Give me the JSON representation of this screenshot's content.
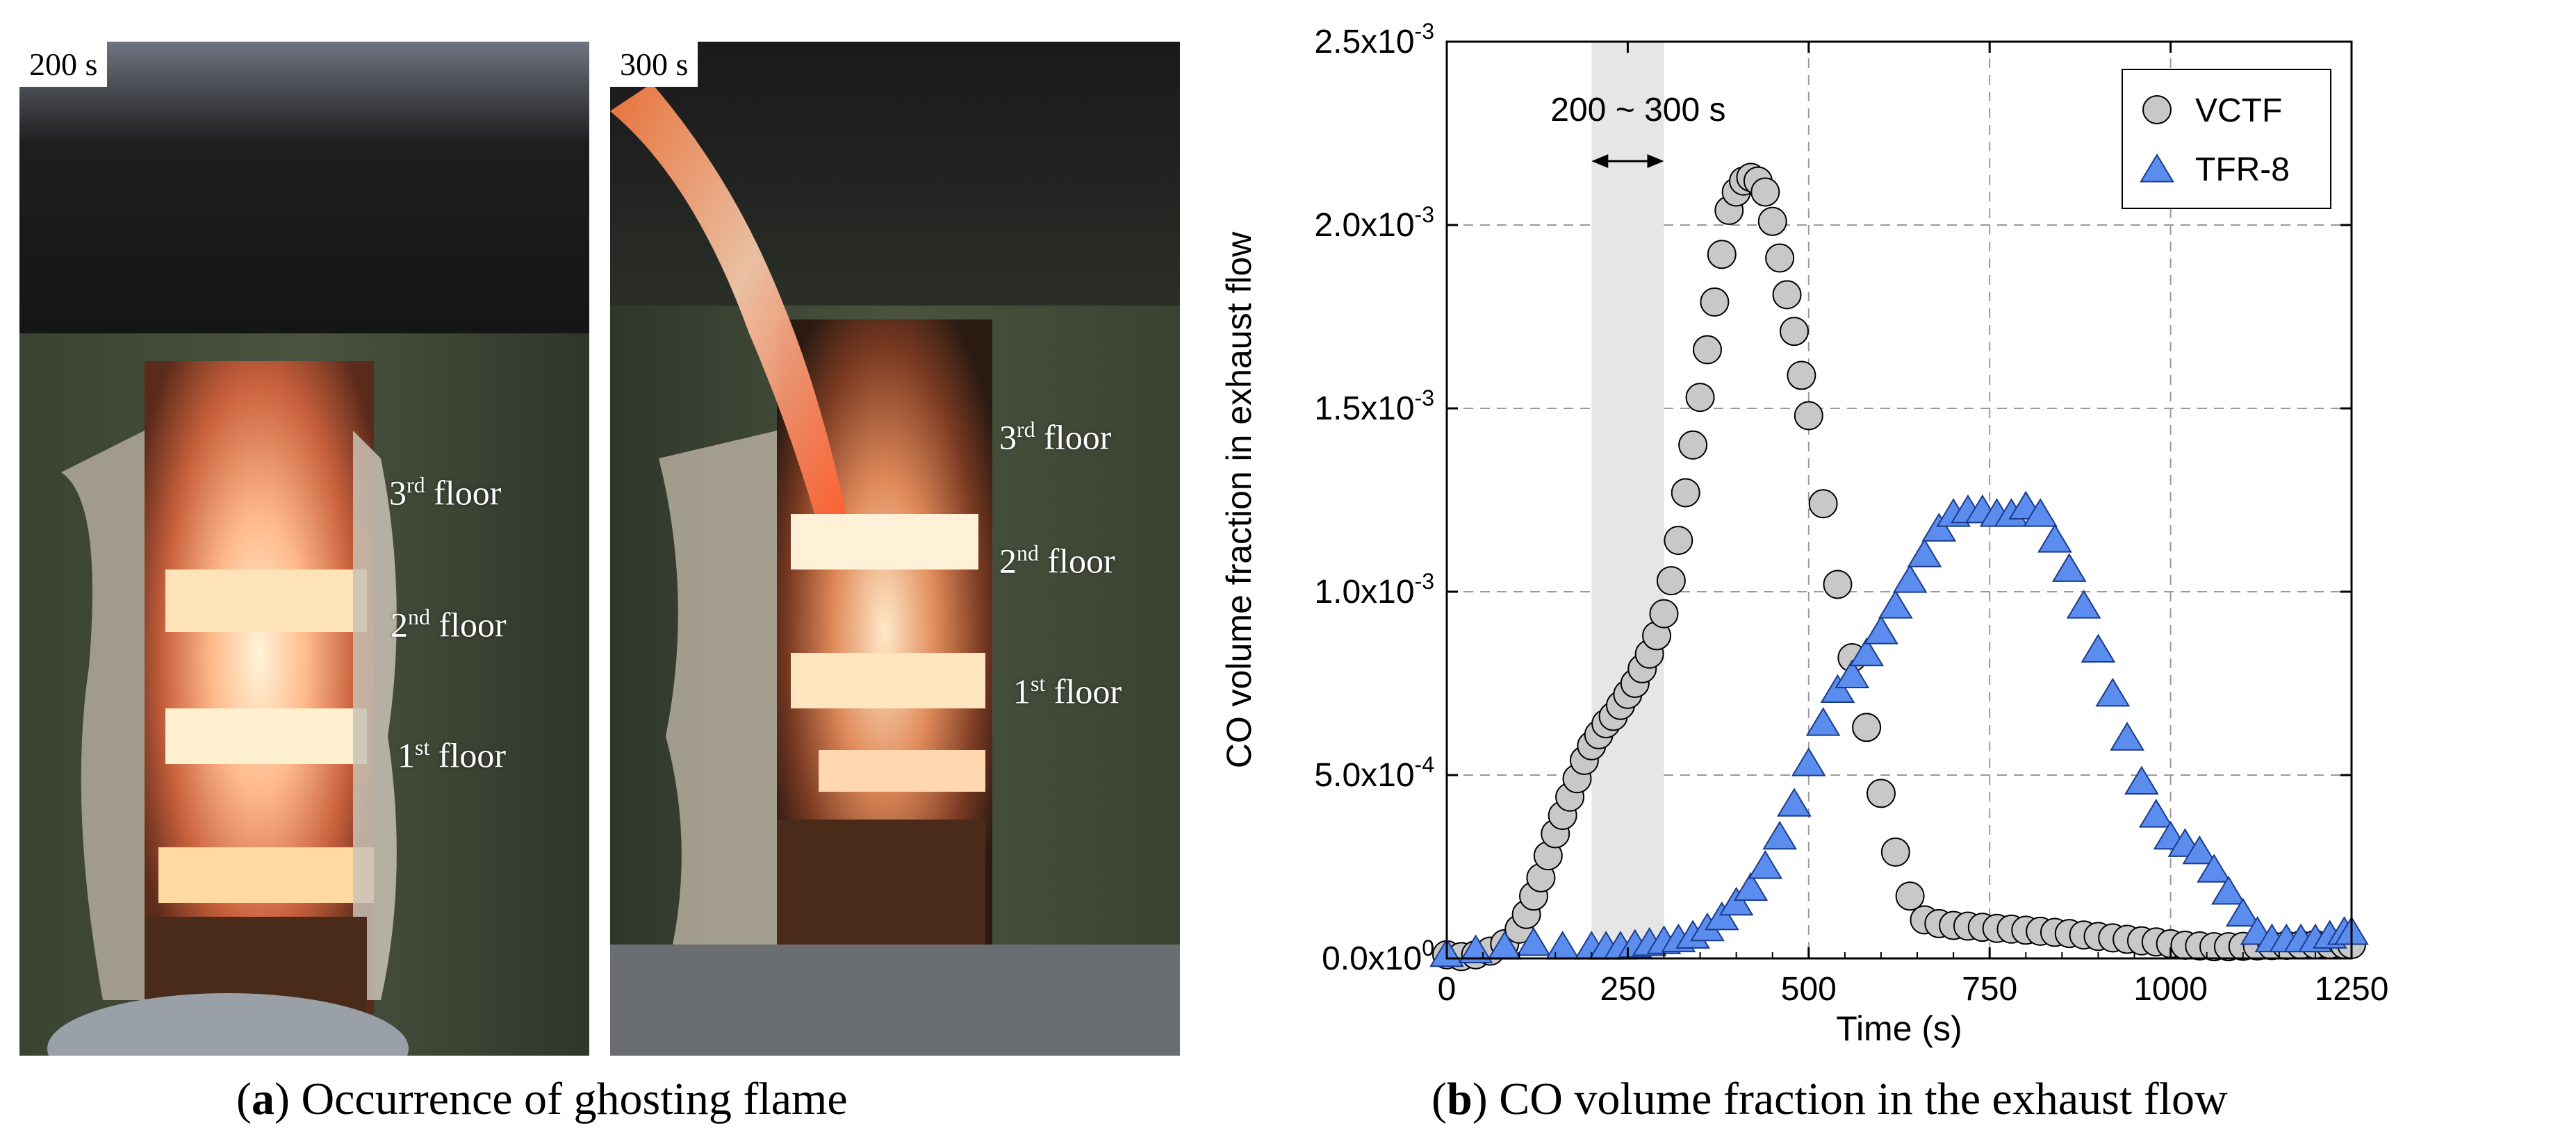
{
  "panel_a": {
    "photo_left": {
      "time": "200 s",
      "floors": [
        {
          "ord": "3",
          "sup": "rd",
          "word": "floor"
        },
        {
          "ord": "2",
          "sup": "nd",
          "word": "floor"
        },
        {
          "ord": "1",
          "sup": "st",
          "word": "floor"
        }
      ]
    },
    "photo_right": {
      "time": "300 s",
      "floors": [
        {
          "ord": "3",
          "sup": "rd",
          "word": "floor"
        },
        {
          "ord": "2",
          "sup": "nd",
          "word": "floor"
        },
        {
          "ord": "1",
          "sup": "st",
          "word": "floor"
        }
      ]
    },
    "caption_letter": "a",
    "caption_text": "Occurrence of ghosting flame"
  },
  "panel_b": {
    "caption_letter": "b",
    "caption_text": "CO volume fraction in the exhaust flow"
  },
  "chart_data": {
    "type": "scatter",
    "xlabel": "Time (s)",
    "ylabel": "CO volume fraction in exhaust flow",
    "xlim": [
      0,
      1250
    ],
    "ylim": [
      0,
      0.0025
    ],
    "xticks": [
      0,
      250,
      500,
      750,
      1000,
      1250
    ],
    "yticks": [
      {
        "value": 0,
        "mantissa": "0.0x10",
        "exp": "0"
      },
      {
        "value": 0.0005,
        "mantissa": "5.0x10",
        "exp": "-4"
      },
      {
        "value": 0.001,
        "mantissa": "1.0x10",
        "exp": "-3"
      },
      {
        "value": 0.0015,
        "mantissa": "1.5x10",
        "exp": "-3"
      },
      {
        "value": 0.002,
        "mantissa": "2.0x10",
        "exp": "-3"
      },
      {
        "value": 0.0025,
        "mantissa": "2.5x10",
        "exp": "-3"
      }
    ],
    "grid": true,
    "legend_position": "top-right",
    "shaded_region": {
      "x": [
        200,
        300
      ],
      "label": "200 ~ 300 s"
    },
    "series": [
      {
        "name": "VCTF",
        "marker": "circle",
        "color": "#c8c8c8",
        "x": [
          0,
          20,
          40,
          60,
          80,
          100,
          110,
          120,
          130,
          140,
          150,
          160,
          170,
          180,
          190,
          200,
          210,
          220,
          230,
          240,
          250,
          260,
          270,
          280,
          290,
          300,
          310,
          320,
          330,
          340,
          350,
          360,
          370,
          380,
          390,
          400,
          410,
          420,
          430,
          440,
          450,
          460,
          470,
          480,
          490,
          500,
          520,
          540,
          560,
          580,
          600,
          620,
          640,
          660,
          680,
          700,
          720,
          740,
          760,
          780,
          800,
          820,
          840,
          860,
          880,
          900,
          920,
          940,
          960,
          980,
          1000,
          1020,
          1040,
          1060,
          1080,
          1100,
          1120,
          1140,
          1160,
          1180,
          1200,
          1220,
          1240,
          1250
        ],
        "y": [
          1e-05,
          5e-06,
          1e-05,
          2e-05,
          4e-05,
          8e-05,
          0.00012,
          0.00017,
          0.00022,
          0.00028,
          0.00034,
          0.00039,
          0.00044,
          0.00049,
          0.00054,
          0.00058,
          0.00061,
          0.00064,
          0.00066,
          0.00069,
          0.00072,
          0.00075,
          0.00079,
          0.00083,
          0.00088,
          0.00094,
          0.00103,
          0.00114,
          0.00127,
          0.0014,
          0.00153,
          0.00166,
          0.00179,
          0.00192,
          0.00204,
          0.00209,
          0.00212,
          0.00213,
          0.00212,
          0.00209,
          0.00201,
          0.00191,
          0.00181,
          0.00171,
          0.00159,
          0.00148,
          0.00124,
          0.00102,
          0.00082,
          0.00063,
          0.00045,
          0.00029,
          0.00017,
          0.000105,
          9.5e-05,
          9e-05,
          8.8e-05,
          8.5e-05,
          8.2e-05,
          8e-05,
          7.7e-05,
          7.4e-05,
          7.1e-05,
          6.8e-05,
          6.4e-05,
          6e-05,
          5.6e-05,
          5.2e-05,
          4.8e-05,
          4.5e-05,
          4e-05,
          3.6e-05,
          3.4e-05,
          3.2e-05,
          3.2e-05,
          3.3e-05,
          3.4e-05,
          3.5e-05,
          3.6e-05,
          3.7e-05,
          3.8e-05,
          3.8e-05,
          3.8e-05,
          3.8e-05
        ]
      },
      {
        "name": "TFR-8",
        "marker": "triangle",
        "color": "#5b8def",
        "x": [
          0,
          40,
          80,
          120,
          160,
          200,
          220,
          240,
          260,
          280,
          300,
          320,
          340,
          360,
          380,
          400,
          420,
          440,
          460,
          480,
          500,
          520,
          540,
          560,
          580,
          600,
          620,
          640,
          660,
          680,
          700,
          720,
          740,
          760,
          780,
          800,
          820,
          840,
          860,
          880,
          900,
          920,
          940,
          960,
          980,
          1000,
          1020,
          1040,
          1060,
          1080,
          1100,
          1120,
          1140,
          1160,
          1180,
          1200,
          1220,
          1240,
          1250
        ],
        "y": [
          1e-05,
          2e-05,
          3e-05,
          4e-05,
          3e-05,
          3e-05,
          3e-05,
          3e-05,
          3.5e-05,
          4e-05,
          4.5e-05,
          5e-05,
          6e-05,
          8e-05,
          0.00011,
          0.00015,
          0.00019,
          0.00025,
          0.00033,
          0.00042,
          0.00053,
          0.00064,
          0.00073,
          0.00077,
          0.00083,
          0.00089,
          0.00096,
          0.00103,
          0.0011,
          0.00117,
          0.00121,
          0.00122,
          0.00122,
          0.00121,
          0.00121,
          0.00123,
          0.00121,
          0.00114,
          0.00106,
          0.00096,
          0.00084,
          0.00072,
          0.0006,
          0.00048,
          0.00039,
          0.00033,
          0.00031,
          0.00029,
          0.00024,
          0.00018,
          0.00012,
          7e-05,
          5e-05,
          5e-05,
          5e-05,
          5e-05,
          6e-05,
          7e-05,
          7e-05
        ]
      }
    ]
  }
}
